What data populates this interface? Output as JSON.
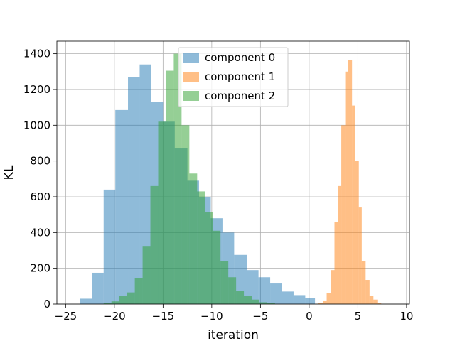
{
  "chart_data": {
    "type": "histogram",
    "xlabel": "iteration",
    "ylabel": "KL",
    "xlim": [
      -25.9,
      10.3
    ],
    "ylim": [
      0,
      1470
    ],
    "grid": true,
    "legend_placement": "top-center",
    "x_ticks": [
      {
        "value": -25,
        "label": "−25"
      },
      {
        "value": -20,
        "label": "−20"
      },
      {
        "value": -15,
        "label": "−15"
      },
      {
        "value": -10,
        "label": "−10"
      },
      {
        "value": -5,
        "label": "−5"
      },
      {
        "value": 0,
        "label": "0"
      },
      {
        "value": 5,
        "label": "5"
      },
      {
        "value": 10,
        "label": "10"
      }
    ],
    "y_ticks": [
      {
        "value": 0,
        "label": "0"
      },
      {
        "value": 200,
        "label": "200"
      },
      {
        "value": 400,
        "label": "400"
      },
      {
        "value": 600,
        "label": "600"
      },
      {
        "value": 800,
        "label": "800"
      },
      {
        "value": 1000,
        "label": "1000"
      },
      {
        "value": 1200,
        "label": "1200"
      },
      {
        "value": 1400,
        "label": "1400"
      }
    ],
    "series": [
      {
        "name": "component 0",
        "color": "#1f77b4",
        "opacity": 0.5,
        "bins": [
          [
            -23.5,
            -22.3,
            30
          ],
          [
            -22.3,
            -21.1,
            175
          ],
          [
            -21.1,
            -19.9,
            640
          ],
          [
            -19.9,
            -18.6,
            1085
          ],
          [
            -18.6,
            -17.4,
            1270
          ],
          [
            -17.4,
            -16.2,
            1340
          ],
          [
            -16.2,
            -15.0,
            1130
          ],
          [
            -15.0,
            -13.8,
            1020
          ],
          [
            -13.8,
            -12.5,
            870
          ],
          [
            -12.5,
            -11.3,
            690
          ],
          [
            -11.3,
            -10.1,
            600
          ],
          [
            -10.1,
            -8.9,
            480
          ],
          [
            -8.9,
            -7.7,
            400
          ],
          [
            -7.7,
            -6.4,
            275
          ],
          [
            -6.4,
            -5.2,
            190
          ],
          [
            -5.2,
            -4.0,
            150
          ],
          [
            -4.0,
            -2.8,
            115
          ],
          [
            -2.8,
            -1.6,
            70
          ],
          [
            -1.6,
            -0.4,
            50
          ],
          [
            -0.4,
            0.6,
            35
          ]
        ]
      },
      {
        "name": "component 1",
        "color": "#ff7f0e",
        "opacity": 0.5,
        "bins": [
          [
            0.9,
            1.4,
            5
          ],
          [
            1.4,
            1.8,
            20
          ],
          [
            1.8,
            2.2,
            60
          ],
          [
            2.2,
            2.6,
            190
          ],
          [
            2.6,
            3.0,
            460
          ],
          [
            3.0,
            3.3,
            660
          ],
          [
            3.3,
            3.7,
            1000
          ],
          [
            3.7,
            4.0,
            1300
          ],
          [
            4.0,
            4.4,
            1365
          ],
          [
            4.4,
            4.7,
            1110
          ],
          [
            4.7,
            5.1,
            800
          ],
          [
            5.1,
            5.4,
            540
          ],
          [
            5.4,
            5.8,
            240
          ],
          [
            5.8,
            6.2,
            135
          ],
          [
            6.2,
            6.6,
            45
          ],
          [
            6.6,
            7.0,
            25
          ],
          [
            7.0,
            7.4,
            5
          ]
        ]
      },
      {
        "name": "component 2",
        "color": "#2ca02c",
        "opacity": 0.5,
        "bins": [
          [
            -21.1,
            -20.3,
            5
          ],
          [
            -20.3,
            -19.5,
            15
          ],
          [
            -19.5,
            -18.7,
            45
          ],
          [
            -18.7,
            -17.9,
            65
          ],
          [
            -17.9,
            -17.1,
            145
          ],
          [
            -17.1,
            -16.3,
            325
          ],
          [
            -16.3,
            -15.5,
            660
          ],
          [
            -15.5,
            -14.7,
            1020
          ],
          [
            -14.7,
            -13.9,
            1305
          ],
          [
            -13.9,
            -13.1,
            1400
          ],
          [
            -13.1,
            -12.3,
            1000
          ],
          [
            -12.3,
            -11.5,
            730
          ],
          [
            -11.5,
            -10.7,
            630
          ],
          [
            -10.7,
            -9.9,
            515
          ],
          [
            -9.9,
            -9.1,
            410
          ],
          [
            -9.1,
            -8.3,
            240
          ],
          [
            -8.3,
            -7.5,
            150
          ],
          [
            -7.5,
            -6.7,
            75
          ],
          [
            -6.7,
            -5.9,
            45
          ],
          [
            -5.9,
            -5.1,
            25
          ],
          [
            -5.1,
            -4.3,
            10
          ],
          [
            -4.3,
            -3.5,
            5
          ]
        ]
      }
    ]
  }
}
